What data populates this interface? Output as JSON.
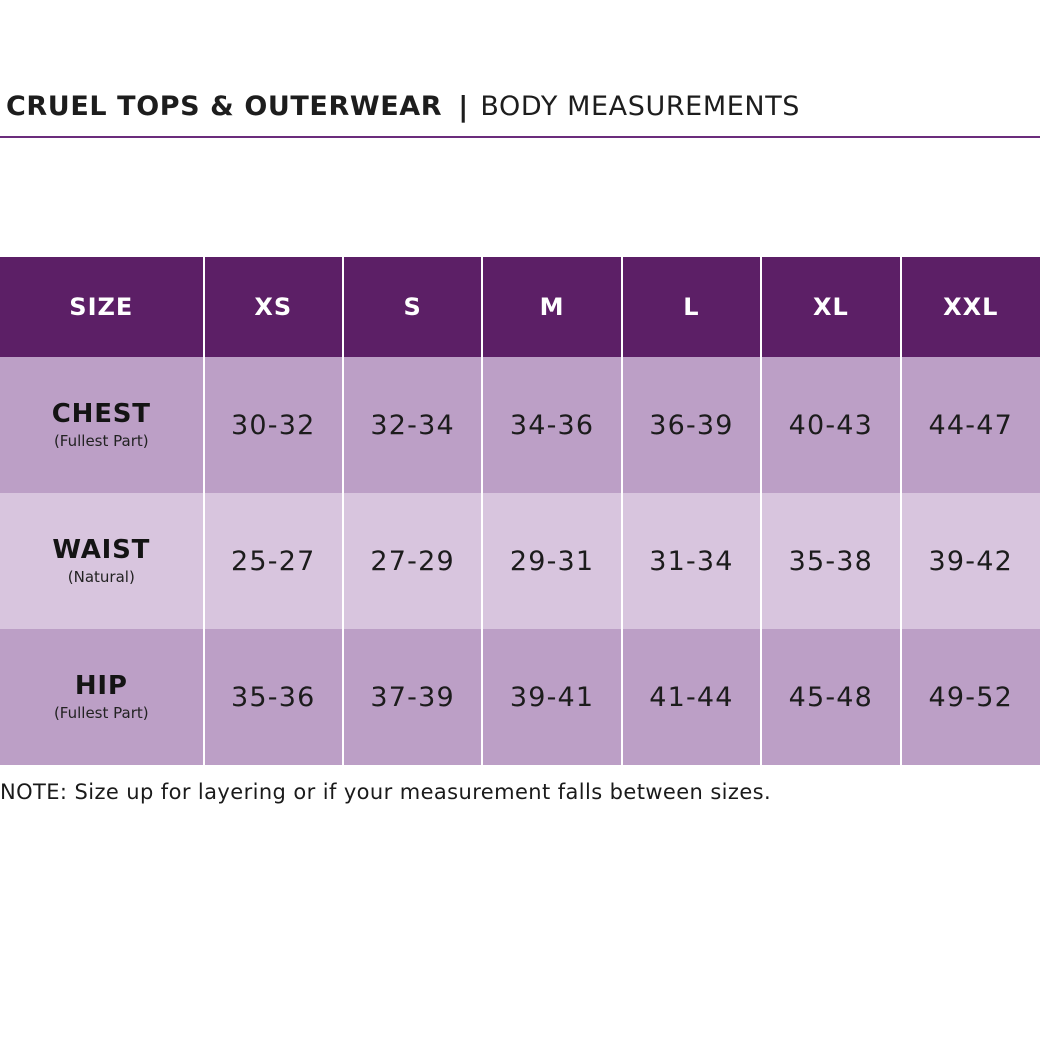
{
  "header": {
    "brand": "CRUEL TOPS & OUTERWEAR",
    "separator": "|",
    "subtitle": "BODY MEASUREMENTS"
  },
  "colors": {
    "header_bg": "#5c1f66",
    "rule": "#6b2d7c",
    "row_dark": "#bc9fc6",
    "row_light": "#d8c5de"
  },
  "table": {
    "header_label": "SIZE",
    "sizes": [
      "XS",
      "S",
      "M",
      "L",
      "XL",
      "XXL"
    ],
    "rows": [
      {
        "label": "CHEST",
        "sub": "(Fullest Part)",
        "values": [
          "30-32",
          "32-34",
          "34-36",
          "36-39",
          "40-43",
          "44-47"
        ]
      },
      {
        "label": "WAIST",
        "sub": "(Natural)",
        "values": [
          "25-27",
          "27-29",
          "29-31",
          "31-34",
          "35-38",
          "39-42"
        ]
      },
      {
        "label": "HIP",
        "sub": "(Fullest Part)",
        "values": [
          "35-36",
          "37-39",
          "39-41",
          "41-44",
          "45-48",
          "49-52"
        ]
      }
    ]
  },
  "note": "NOTE: Size up for layering or if your measurement falls between sizes."
}
